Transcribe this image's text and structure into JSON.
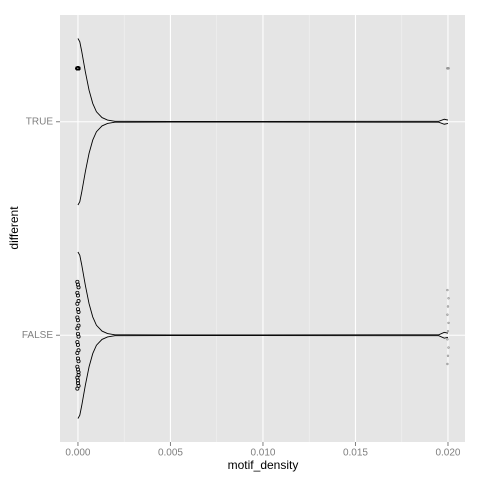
{
  "chart_data": {
    "type": "violin",
    "xlabel": "motif_density",
    "ylabel": "different",
    "categories": [
      "TRUE",
      "FALSE"
    ],
    "xlim": [
      -0.00097,
      0.02092
    ],
    "xticks": [
      {
        "value": 0,
        "label": "0.000"
      },
      {
        "value": 0.005,
        "label": "0.005"
      },
      {
        "value": 0.01,
        "label": "0.010"
      },
      {
        "value": 0.015,
        "label": "0.015"
      },
      {
        "value": 0.02,
        "label": "0.020"
      }
    ],
    "xminor": [
      0.0025,
      0.0075,
      0.0125,
      0.0175
    ],
    "grid": true,
    "density_x": [
      0,
      0.0001,
      0.0002,
      0.0004,
      0.0006,
      0.0008,
      0.001,
      0.0013,
      0.0016,
      0.002,
      0.005,
      0.0195,
      0.0198,
      0.02
    ],
    "series": [
      {
        "values": [
          0,
          0,
          0,
          0,
          0,
          0,
          0,
          0,
          0,
          0,
          0,
          0,
          0,
          0,
          0,
          0,
          0,
          0,
          0,
          0,
          0,
          0,
          0,
          0,
          0,
          0,
          0,
          0,
          0,
          0,
          0.02,
          0.02,
          0.02,
          0.02,
          0.02,
          0.02,
          0.02
        ],
        "density": [
          1,
          0.96,
          0.85,
          0.6,
          0.38,
          0.22,
          0.12,
          0.05,
          0.02,
          0.005,
          0.004,
          0.005,
          0.03,
          0.02
        ]
      },
      {
        "values": [
          0,
          0,
          0,
          0,
          0,
          0,
          0,
          0,
          0,
          0,
          0,
          0,
          0,
          0,
          0,
          0,
          0,
          0,
          0,
          0,
          0,
          0,
          0,
          0,
          0,
          0,
          0,
          0,
          0,
          0,
          0.02,
          0.02,
          0.02,
          0.02,
          0.02,
          0.02,
          0.02,
          0.02,
          0.02,
          0.02
        ],
        "density": [
          1,
          0.96,
          0.85,
          0.6,
          0.38,
          0.22,
          0.12,
          0.05,
          0.02,
          0.005,
          0.004,
          0.005,
          0.035,
          0.025
        ]
      }
    ]
  }
}
